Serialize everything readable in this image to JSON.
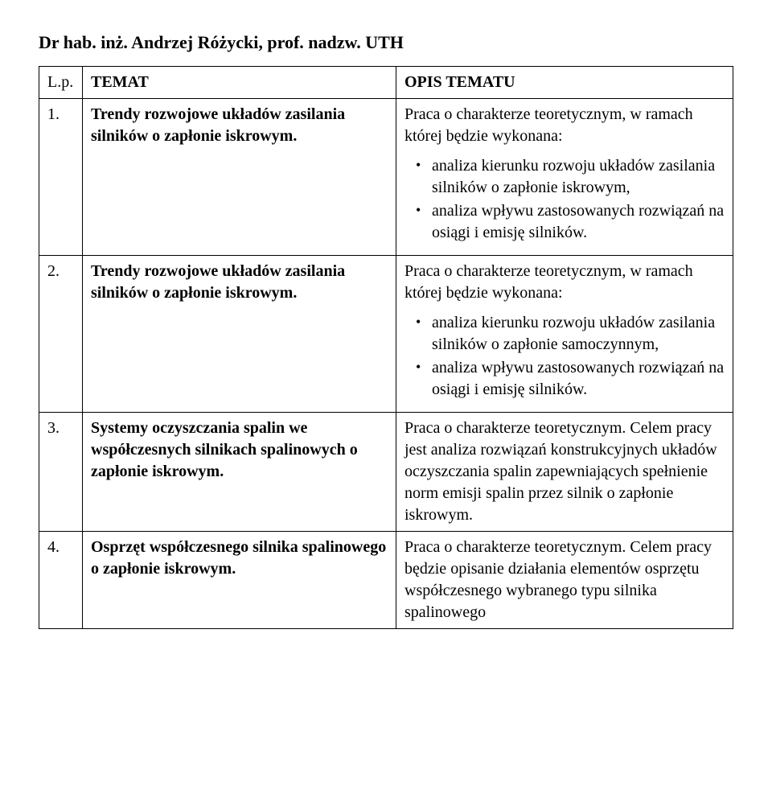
{
  "author": "Dr hab. inż. Andrzej Różycki, prof. nadzw. UTH",
  "header": {
    "lp": "L.p.",
    "temat": "TEMAT",
    "opis": "OPIS TEMATU"
  },
  "rows": [
    {
      "num": "1.",
      "topic": "Trendy rozwojowe układów zasilania silników o zapłonie iskrowym.",
      "intro": "Praca o charakterze teoretycznym, w ramach której będzie wykonana:",
      "b1": "analiza kierunku rozwoju układów zasilania silników o zapłonie iskrowym,",
      "b2": "analiza wpływu zastosowanych rozwiązań na osiągi i emisję silników."
    },
    {
      "num": "2.",
      "topic": "Trendy rozwojowe układów zasilania silników o zapłonie iskrowym.",
      "intro": "Praca o charakterze teoretycznym, w ramach której będzie wykonana:",
      "b1": "analiza kierunku rozwoju układów zasilania silników o zapłonie samoczynnym,",
      "b2": "analiza wpływu zastosowanych rozwiązań na osiągi i emisję silników."
    },
    {
      "num": "3.",
      "topic": "Systemy oczyszczania spalin we współczesnych silnikach spalinowych o zapłonie iskrowym.",
      "desc": "Praca o charakterze teoretycznym. Celem pracy jest analiza rozwiązań konstrukcyjnych układów oczyszczania spalin zapewniających spełnienie norm emisji spalin przez silnik o zapłonie iskrowym."
    },
    {
      "num": "4.",
      "topic": "Osprzęt współczesnego silnika spalinowego o zapłonie iskrowym.",
      "desc": "Praca o charakterze teoretycznym. Celem pracy będzie opisanie działania elementów osprzętu współczesnego wybranego typu silnika spalinowego"
    }
  ]
}
